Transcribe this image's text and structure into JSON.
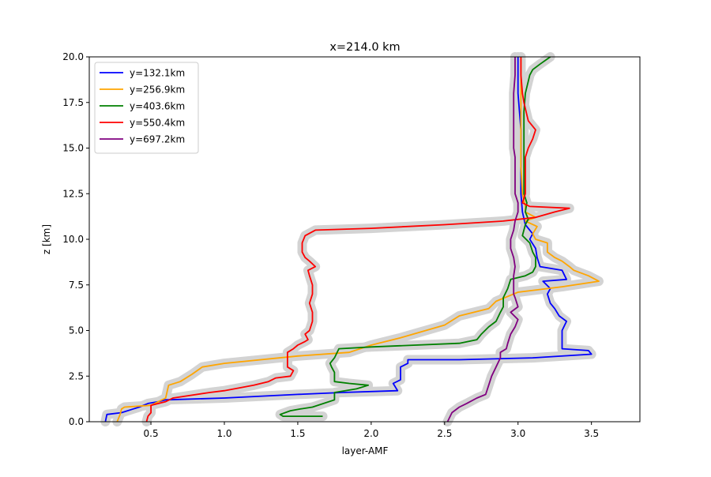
{
  "chart_data": {
    "type": "line",
    "title": "x=214.0 km",
    "xlabel": "layer-AMF",
    "ylabel": "z [km]",
    "xlim": [
      0.08,
      3.83
    ],
    "ylim": [
      0,
      20
    ],
    "xticks": [
      "0.5",
      "1.0",
      "1.5",
      "2.0",
      "2.5",
      "3.0",
      "3.5"
    ],
    "xtick_values": [
      0.5,
      1.0,
      1.5,
      2.0,
      2.5,
      3.0,
      3.5
    ],
    "yticks": [
      "0.0",
      "2.5",
      "5.0",
      "7.5",
      "10.0",
      "12.5",
      "15.0",
      "17.5",
      "20.0"
    ],
    "ytick_values": [
      0,
      2.5,
      5,
      7.5,
      10,
      12.5,
      15,
      17.5,
      20
    ],
    "grid": false,
    "legend_position": "upper-left",
    "band_color": "#d3d3d3",
    "series": [
      {
        "name": "y=132.1km",
        "color": "#0000ff",
        "points": [
          [
            0.19,
            0
          ],
          [
            0.2,
            0.4
          ],
          [
            0.3,
            0.5
          ],
          [
            0.38,
            0.7
          ],
          [
            0.42,
            0.8
          ],
          [
            0.48,
            1.0
          ],
          [
            0.55,
            1.1
          ],
          [
            0.6,
            1.2
          ],
          [
            1.0,
            1.3
          ],
          [
            1.5,
            1.5
          ],
          [
            1.8,
            1.6
          ],
          [
            2.18,
            1.7
          ],
          [
            2.15,
            2.1
          ],
          [
            2.2,
            2.3
          ],
          [
            2.2,
            3.0
          ],
          [
            2.25,
            3.2
          ],
          [
            2.25,
            3.4
          ],
          [
            2.6,
            3.4
          ],
          [
            3.1,
            3.5
          ],
          [
            3.5,
            3.7
          ],
          [
            3.48,
            3.9
          ],
          [
            3.3,
            4.0
          ],
          [
            3.3,
            4.3
          ],
          [
            3.3,
            5.0
          ],
          [
            3.33,
            5.5
          ],
          [
            3.28,
            5.8
          ],
          [
            3.25,
            6.2
          ],
          [
            3.22,
            6.5
          ],
          [
            3.2,
            7.0
          ],
          [
            3.22,
            7.3
          ],
          [
            3.17,
            7.7
          ],
          [
            3.33,
            7.8
          ],
          [
            3.3,
            8.3
          ],
          [
            3.15,
            8.5
          ],
          [
            3.13,
            9.0
          ],
          [
            3.12,
            9.5
          ],
          [
            3.08,
            10.0
          ],
          [
            3.1,
            10.3
          ],
          [
            3.05,
            10.8
          ],
          [
            3.03,
            11.5
          ],
          [
            3.02,
            12.5
          ],
          [
            3.02,
            14.0
          ],
          [
            3.02,
            16.0
          ],
          [
            3.0,
            18.0
          ],
          [
            3.0,
            20.0
          ]
        ]
      },
      {
        "name": "y=256.9km",
        "color": "#ffa500",
        "points": [
          [
            0.27,
            0
          ],
          [
            0.29,
            0.4
          ],
          [
            0.3,
            0.7
          ],
          [
            0.32,
            0.8
          ],
          [
            0.5,
            0.9
          ],
          [
            0.6,
            1.3
          ],
          [
            0.62,
            2.0
          ],
          [
            0.7,
            2.2
          ],
          [
            0.78,
            2.6
          ],
          [
            0.85,
            3.0
          ],
          [
            1.0,
            3.2
          ],
          [
            1.5,
            3.6
          ],
          [
            1.85,
            3.8
          ],
          [
            2.0,
            4.2
          ],
          [
            2.2,
            4.6
          ],
          [
            2.5,
            5.3
          ],
          [
            2.6,
            5.8
          ],
          [
            2.8,
            6.2
          ],
          [
            2.85,
            6.6
          ],
          [
            3.0,
            7.1
          ],
          [
            3.3,
            7.4
          ],
          [
            3.55,
            7.7
          ],
          [
            3.48,
            8.0
          ],
          [
            3.38,
            8.3
          ],
          [
            3.35,
            8.5
          ],
          [
            3.3,
            8.8
          ],
          [
            3.25,
            9.0
          ],
          [
            3.2,
            9.3
          ],
          [
            3.2,
            9.8
          ],
          [
            3.12,
            10.0
          ],
          [
            3.1,
            10.3
          ],
          [
            3.13,
            10.7
          ],
          [
            3.05,
            11.0
          ],
          [
            3.12,
            11.2
          ],
          [
            3.05,
            11.5
          ],
          [
            3.05,
            11.8
          ],
          [
            3.03,
            12.5
          ],
          [
            3.02,
            14.0
          ],
          [
            3.02,
            16.0
          ],
          [
            3.02,
            18.0
          ],
          [
            3.02,
            20.0
          ]
        ]
      },
      {
        "name": "y=403.6km",
        "color": "#008000",
        "points": [
          [
            1.67,
            0.3
          ],
          [
            1.4,
            0.3
          ],
          [
            1.38,
            0.4
          ],
          [
            1.45,
            0.6
          ],
          [
            1.52,
            0.7
          ],
          [
            1.6,
            0.8
          ],
          [
            1.75,
            1.2
          ],
          [
            1.75,
            1.6
          ],
          [
            1.9,
            1.8
          ],
          [
            1.98,
            2.0
          ],
          [
            1.85,
            2.1
          ],
          [
            1.75,
            2.2
          ],
          [
            1.75,
            2.5
          ],
          [
            1.75,
            2.7
          ],
          [
            1.73,
            3.0
          ],
          [
            1.72,
            3.2
          ],
          [
            1.75,
            3.5
          ],
          [
            1.78,
            4.0
          ],
          [
            2.0,
            4.1
          ],
          [
            2.6,
            4.3
          ],
          [
            2.72,
            4.5
          ],
          [
            2.75,
            4.8
          ],
          [
            2.8,
            5.2
          ],
          [
            2.85,
            5.5
          ],
          [
            2.88,
            6.0
          ],
          [
            2.9,
            6.3
          ],
          [
            2.9,
            6.8
          ],
          [
            2.93,
            7.3
          ],
          [
            2.95,
            7.8
          ],
          [
            3.05,
            8.0
          ],
          [
            3.1,
            8.2
          ],
          [
            3.12,
            8.5
          ],
          [
            3.12,
            9.0
          ],
          [
            3.1,
            9.3
          ],
          [
            3.08,
            9.8
          ],
          [
            3.03,
            10.2
          ],
          [
            3.05,
            10.8
          ],
          [
            3.07,
            11.1
          ],
          [
            3.05,
            11.5
          ],
          [
            3.06,
            12.0
          ],
          [
            3.04,
            12.5
          ],
          [
            3.04,
            14.0
          ],
          [
            3.04,
            16.0
          ],
          [
            3.04,
            17.0
          ],
          [
            3.05,
            18.0
          ],
          [
            3.08,
            19.0
          ],
          [
            3.1,
            19.3
          ],
          [
            3.15,
            19.6
          ],
          [
            3.22,
            20.0
          ]
        ]
      },
      {
        "name": "y=550.4km",
        "color": "#ff0000",
        "points": [
          [
            0.47,
            0
          ],
          [
            0.48,
            0.3
          ],
          [
            0.5,
            0.5
          ],
          [
            0.5,
            0.9
          ],
          [
            0.6,
            1.1
          ],
          [
            0.65,
            1.3
          ],
          [
            0.9,
            1.6
          ],
          [
            1.0,
            1.7
          ],
          [
            1.2,
            2.0
          ],
          [
            1.3,
            2.2
          ],
          [
            1.35,
            2.4
          ],
          [
            1.45,
            2.5
          ],
          [
            1.47,
            2.8
          ],
          [
            1.43,
            3.0
          ],
          [
            1.43,
            3.2
          ],
          [
            1.43,
            3.5
          ],
          [
            1.43,
            3.8
          ],
          [
            1.47,
            4.0
          ],
          [
            1.5,
            4.2
          ],
          [
            1.55,
            4.4
          ],
          [
            1.57,
            4.5
          ],
          [
            1.55,
            4.8
          ],
          [
            1.58,
            5.0
          ],
          [
            1.6,
            5.5
          ],
          [
            1.6,
            6.0
          ],
          [
            1.58,
            6.5
          ],
          [
            1.6,
            7.0
          ],
          [
            1.6,
            7.5
          ],
          [
            1.58,
            8.0
          ],
          [
            1.57,
            8.3
          ],
          [
            1.62,
            8.5
          ],
          [
            1.58,
            8.8
          ],
          [
            1.55,
            9.0
          ],
          [
            1.53,
            9.3
          ],
          [
            1.53,
            9.8
          ],
          [
            1.55,
            10.2
          ],
          [
            1.62,
            10.5
          ],
          [
            2.0,
            10.6
          ],
          [
            2.5,
            10.8
          ],
          [
            2.9,
            11.0
          ],
          [
            3.12,
            11.2
          ],
          [
            3.25,
            11.5
          ],
          [
            3.35,
            11.7
          ],
          [
            3.08,
            11.8
          ],
          [
            3.03,
            12.0
          ],
          [
            3.05,
            12.5
          ],
          [
            3.05,
            13.5
          ],
          [
            3.05,
            14.5
          ],
          [
            3.07,
            15.0
          ],
          [
            3.1,
            15.5
          ],
          [
            3.12,
            16.0
          ],
          [
            3.07,
            16.5
          ],
          [
            3.04,
            17.5
          ],
          [
            3.03,
            18.0
          ],
          [
            3.02,
            19.0
          ],
          [
            3.02,
            20.0
          ]
        ]
      },
      {
        "name": "y=697.2km",
        "color": "#800080",
        "points": [
          [
            2.52,
            0
          ],
          [
            2.55,
            0.5
          ],
          [
            2.6,
            0.8
          ],
          [
            2.65,
            1.0
          ],
          [
            2.72,
            1.3
          ],
          [
            2.78,
            1.5
          ],
          [
            2.8,
            2.0
          ],
          [
            2.82,
            2.5
          ],
          [
            2.85,
            3.0
          ],
          [
            2.88,
            3.5
          ],
          [
            2.88,
            3.8
          ],
          [
            2.92,
            4.0
          ],
          [
            2.93,
            4.3
          ],
          [
            2.95,
            4.8
          ],
          [
            2.98,
            5.2
          ],
          [
            3.0,
            5.6
          ],
          [
            2.95,
            6.0
          ],
          [
            3.0,
            6.3
          ],
          [
            2.98,
            6.8
          ],
          [
            2.97,
            7.0
          ],
          [
            2.97,
            7.5
          ],
          [
            2.97,
            8.0
          ],
          [
            2.98,
            8.5
          ],
          [
            2.97,
            9.0
          ],
          [
            2.95,
            9.5
          ],
          [
            2.95,
            10.0
          ],
          [
            2.97,
            10.5
          ],
          [
            2.98,
            11.0
          ],
          [
            3.0,
            11.5
          ],
          [
            3.0,
            12.0
          ],
          [
            2.98,
            12.5
          ],
          [
            2.98,
            13.5
          ],
          [
            2.98,
            14.5
          ],
          [
            2.97,
            15.0
          ],
          [
            2.97,
            16.0
          ],
          [
            2.97,
            17.0
          ],
          [
            2.97,
            18.0
          ],
          [
            2.98,
            19.0
          ],
          [
            2.98,
            20.0
          ]
        ]
      }
    ]
  }
}
